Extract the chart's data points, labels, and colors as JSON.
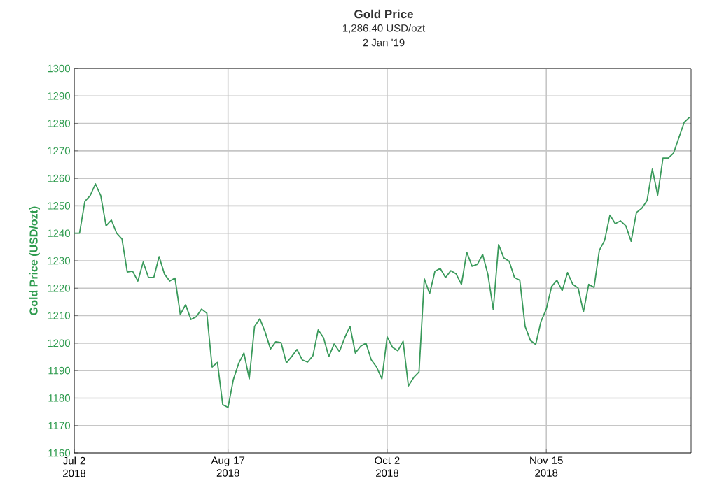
{
  "chart_data": {
    "type": "line",
    "title": "Gold Price",
    "subtitle": "1,286.40 USD/ozt",
    "annotations": [
      "2 Jan '19"
    ],
    "ylabel": "Gold Price (USD/ozt)",
    "categories": [
      "Jul 2 2018",
      null,
      null,
      null,
      null,
      null,
      null,
      null,
      null,
      null,
      null,
      null,
      null,
      null,
      null,
      null,
      null,
      null,
      null,
      null,
      null,
      null,
      null,
      null,
      null,
      null,
      null,
      null,
      null,
      "Aug 17 2018",
      null,
      null,
      null,
      null,
      null,
      null,
      null,
      null,
      null,
      null,
      null,
      null,
      null,
      null,
      null,
      null,
      null,
      null,
      null,
      null,
      null,
      null,
      null,
      null,
      null,
      null,
      null,
      null,
      null,
      "Oct 2 2018",
      null,
      null,
      null,
      null,
      null,
      null,
      null,
      null,
      null,
      null,
      null,
      null,
      null,
      null,
      null,
      null,
      null,
      null,
      null,
      null,
      null,
      null,
      null,
      null,
      null,
      null,
      null,
      null,
      null,
      "Nov 15 2018",
      null,
      null,
      null,
      null,
      null,
      null,
      null,
      null,
      null,
      null,
      null,
      null,
      null,
      null,
      null,
      null,
      null,
      null,
      null,
      null,
      null,
      null,
      null,
      null,
      null,
      null,
      null
    ],
    "series": [
      {
        "color": "#3a9a5b",
        "values": [
          1240,
          1240,
          1251.6,
          1253.7,
          1258,
          1253.7,
          1242.7,
          1244.8,
          1240,
          1237.9,
          1225.9,
          1226.2,
          1222.6,
          1229.5,
          1223.9,
          1223.9,
          1231.5,
          1225.2,
          1222.6,
          1223.7,
          1210.4,
          1214,
          1208.6,
          1209.6,
          1212.4,
          1210.9,
          1191.3,
          1193,
          1177.6,
          1176.6,
          1186.7,
          1192.6,
          1196.4,
          1187,
          1206.1,
          1208.9,
          1204,
          1197.9,
          1200.5,
          1200.2,
          1192.8,
          1195.1,
          1197.7,
          1193.9,
          1193.1,
          1195.4,
          1204.8,
          1202,
          1195.1,
          1199.7,
          1196.9,
          1202,
          1206.1,
          1196.4,
          1198.9,
          1200,
          1193.9,
          1191.3,
          1187,
          1202.3,
          1198.5,
          1197.2,
          1200.7,
          1184.4,
          1187.5,
          1189.5,
          1223.4,
          1218,
          1226.2,
          1227.2,
          1223.9,
          1226.4,
          1225.2,
          1221.4,
          1233.1,
          1228,
          1228.7,
          1232.3,
          1224.9,
          1212.2,
          1235.9,
          1231,
          1229.8,
          1223.9,
          1222.9,
          1206.1,
          1201,
          1199.5,
          1207.9,
          1212.4,
          1220.6,
          1222.9,
          1219.1,
          1225.7,
          1221.4,
          1220.1,
          1211.4,
          1221.4,
          1220.3,
          1233.8,
          1237.4,
          1246.6,
          1243.5,
          1244.5,
          1242.7,
          1237.1,
          1247.6,
          1249.1,
          1251.9,
          1263.4,
          1253.9,
          1267.4,
          1267.4,
          1269.2,
          1274.8,
          1280.4,
          1282.2
        ]
      }
    ],
    "ylim": [
      1160,
      1300
    ],
    "yticks": [
      1160,
      1170,
      1180,
      1190,
      1200,
      1210,
      1220,
      1230,
      1240,
      1250,
      1260,
      1270,
      1280,
      1290,
      1300
    ],
    "grid": true,
    "marker": "none",
    "line_style": "solid"
  }
}
